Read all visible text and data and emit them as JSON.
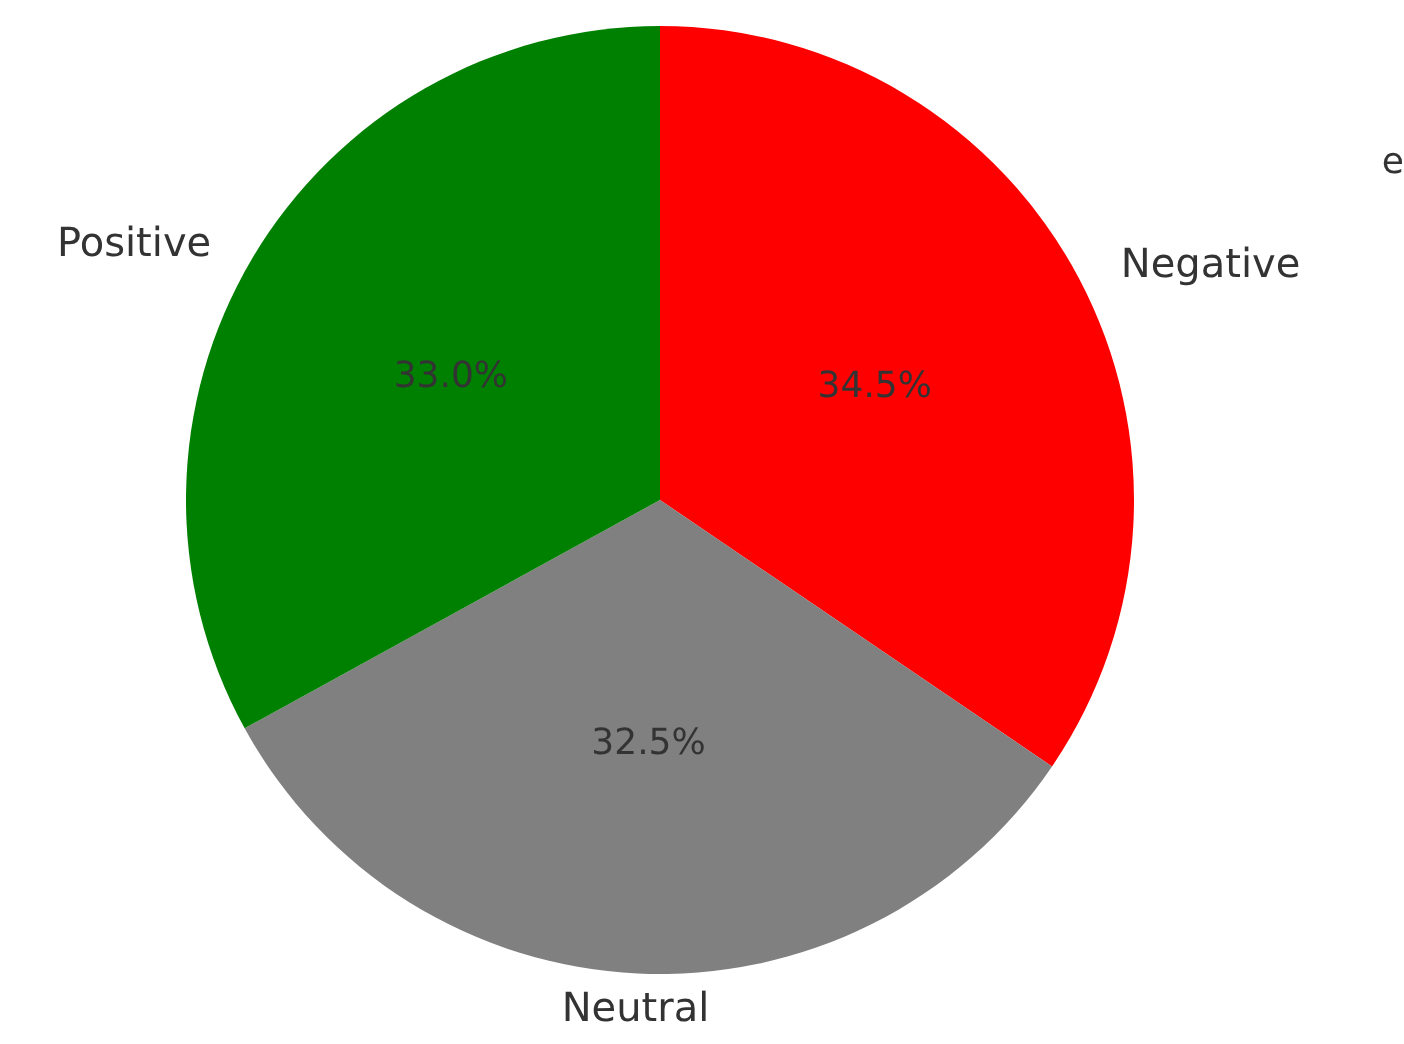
{
  "chart_data": {
    "type": "pie",
    "categories": [
      "Negative",
      "Neutral",
      "Positive"
    ],
    "values": [
      34.5,
      32.5,
      33.0
    ],
    "colors": [
      "#ff0000",
      "#808080",
      "#008000"
    ],
    "value_labels": [
      "34.5%",
      "32.5%",
      "33.0%"
    ],
    "annotations": [
      "e"
    ]
  }
}
